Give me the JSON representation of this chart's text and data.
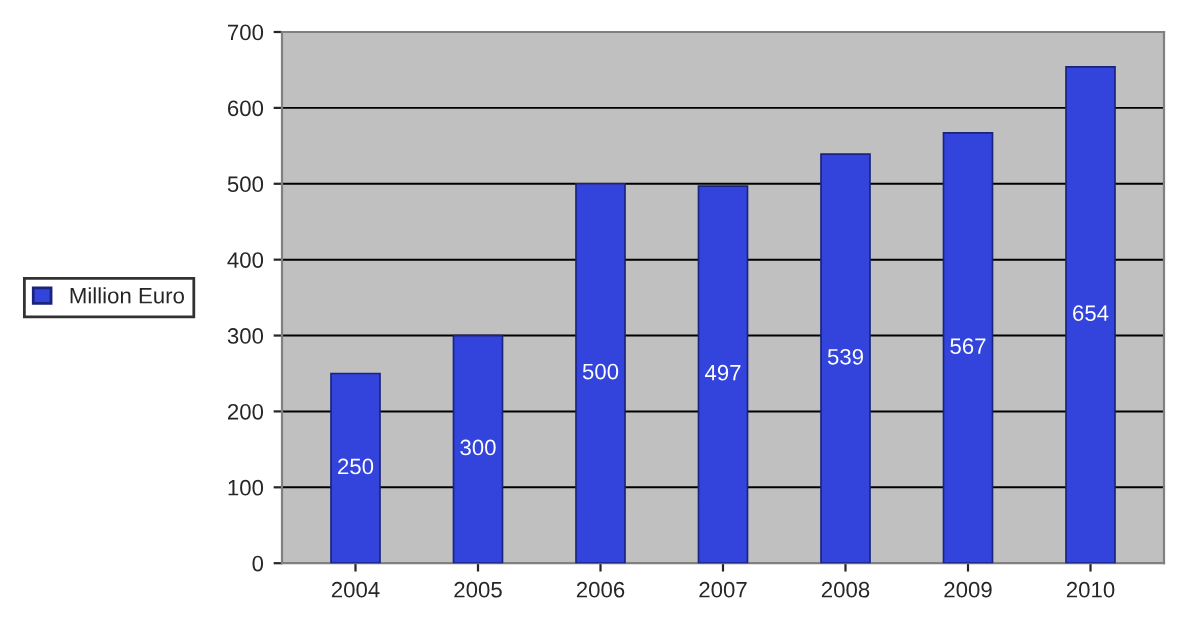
{
  "chart_data": {
    "type": "bar",
    "categories": [
      "2004",
      "2005",
      "2006",
      "2007",
      "2008",
      "2009",
      "2010"
    ],
    "series": [
      {
        "name": "Million Euro",
        "color": "#3344dd",
        "values": [
          250,
          300,
          500,
          497,
          539,
          567,
          654
        ]
      }
    ],
    "ylim": [
      0,
      700
    ],
    "yticks": [
      0,
      100,
      200,
      300,
      400,
      500,
      600,
      700
    ],
    "grid": "y",
    "legend": "left",
    "data_labels": true
  }
}
